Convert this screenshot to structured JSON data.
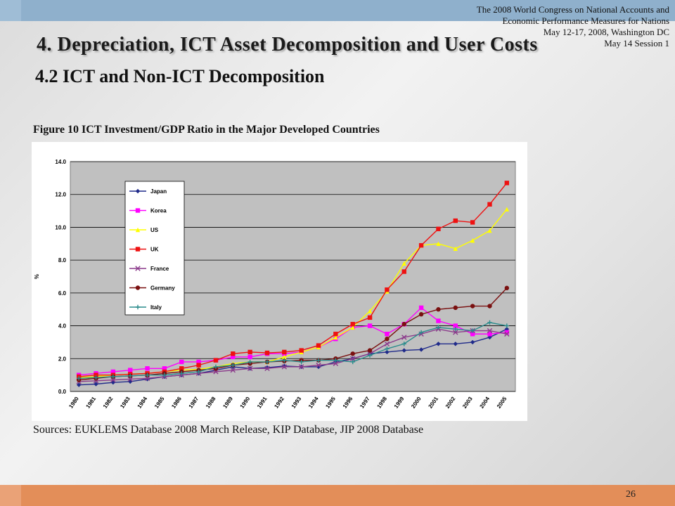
{
  "header": {
    "conference_note": [
      "The 2008 World Congress on National Accounts and",
      "Economic Performance Measures for Nations",
      "May 12-17, 2008, Washington DC",
      "May 14 Session 1"
    ]
  },
  "slide": {
    "title": "4. Depreciation, ICT Asset Decomposition and User Costs",
    "subtitle": "4.2 ICT and Non-ICT Decomposition",
    "figure_caption": "Figure 10 ICT Investment/GDP Ratio in the Major Developed Countries",
    "sources": "Sources: EUKLEMS Database 2008 March Release, KIP Database, JIP 2008 Database",
    "page_number": "26"
  },
  "chart_data": {
    "type": "line",
    "title": "",
    "xlabel": "",
    "ylabel": "%",
    "ylim": [
      0,
      14
    ],
    "yticks": [
      "0.0",
      "2.0",
      "4.0",
      "6.0",
      "8.0",
      "10.0",
      "12.0",
      "14.0"
    ],
    "grid": true,
    "legend_position": "top-left",
    "x": [
      "1980",
      "1981",
      "1982",
      "1983",
      "1984",
      "1985",
      "1986",
      "1987",
      "1988",
      "1989",
      "1990",
      "1991",
      "1992",
      "1993",
      "1994",
      "1995",
      "1996",
      "1997",
      "1998",
      "1999",
      "2000",
      "2001",
      "2002",
      "2003",
      "2004",
      "2005"
    ],
    "series": [
      {
        "name": "Japan",
        "color": "#1f2a8a",
        "marker": "diamond",
        "values": [
          0.4,
          0.45,
          0.55,
          0.6,
          0.75,
          0.9,
          1.0,
          1.1,
          1.3,
          1.5,
          1.4,
          1.45,
          1.55,
          1.5,
          1.5,
          1.8,
          2.0,
          2.3,
          2.4,
          2.5,
          2.55,
          2.9,
          2.9,
          3.0,
          3.3,
          3.8
        ]
      },
      {
        "name": "Korea",
        "color": "#ff00ff",
        "marker": "square",
        "values": [
          1.0,
          1.1,
          1.2,
          1.3,
          1.4,
          1.4,
          1.8,
          1.8,
          1.9,
          2.1,
          2.1,
          2.3,
          2.3,
          2.4,
          2.7,
          3.2,
          3.9,
          4.0,
          3.5,
          4.1,
          5.1,
          4.3,
          4.0,
          3.5,
          3.5,
          3.6
        ]
      },
      {
        "name": "US",
        "color": "#ffff00",
        "marker": "triangle",
        "values": [
          0.85,
          0.9,
          1.0,
          1.05,
          1.1,
          1.2,
          1.3,
          1.35,
          1.5,
          1.7,
          1.8,
          1.8,
          2.1,
          2.4,
          2.7,
          3.3,
          3.9,
          4.9,
          6.1,
          7.8,
          8.9,
          9.0,
          8.7,
          9.2,
          9.8,
          11.1
        ]
      },
      {
        "name": "UK",
        "color": "#ee1111",
        "marker": "square",
        "values": [
          0.9,
          1.0,
          1.0,
          1.05,
          1.1,
          1.2,
          1.4,
          1.6,
          1.9,
          2.3,
          2.4,
          2.35,
          2.4,
          2.5,
          2.8,
          3.5,
          4.1,
          4.5,
          6.2,
          7.3,
          8.9,
          9.9,
          10.4,
          10.3,
          11.4,
          12.7
        ]
      },
      {
        "name": "France",
        "color": "#8b3a8b",
        "marker": "x",
        "values": [
          0.6,
          0.65,
          0.7,
          0.75,
          0.8,
          0.9,
          1.0,
          1.1,
          1.2,
          1.3,
          1.4,
          1.4,
          1.5,
          1.5,
          1.6,
          1.7,
          2.0,
          2.3,
          2.9,
          3.3,
          3.5,
          3.8,
          3.6,
          3.7,
          3.7,
          3.5
        ]
      },
      {
        "name": "Germany",
        "color": "#7a1010",
        "marker": "circle",
        "values": [
          0.7,
          0.8,
          0.9,
          0.95,
          1.0,
          1.1,
          1.2,
          1.3,
          1.4,
          1.6,
          1.7,
          1.8,
          1.85,
          1.9,
          1.9,
          2.0,
          2.3,
          2.5,
          3.2,
          4.1,
          4.7,
          5.0,
          5.1,
          5.2,
          5.2,
          6.3
        ]
      },
      {
        "name": "Italy",
        "color": "#2a8c8c",
        "marker": "plus",
        "values": [
          0.8,
          0.85,
          0.9,
          0.95,
          1.0,
          1.0,
          1.1,
          1.2,
          1.5,
          1.6,
          1.8,
          1.8,
          1.9,
          1.8,
          1.9,
          1.9,
          1.8,
          2.2,
          2.6,
          2.9,
          3.6,
          3.9,
          3.8,
          3.7,
          4.2,
          4.0
        ]
      }
    ]
  }
}
